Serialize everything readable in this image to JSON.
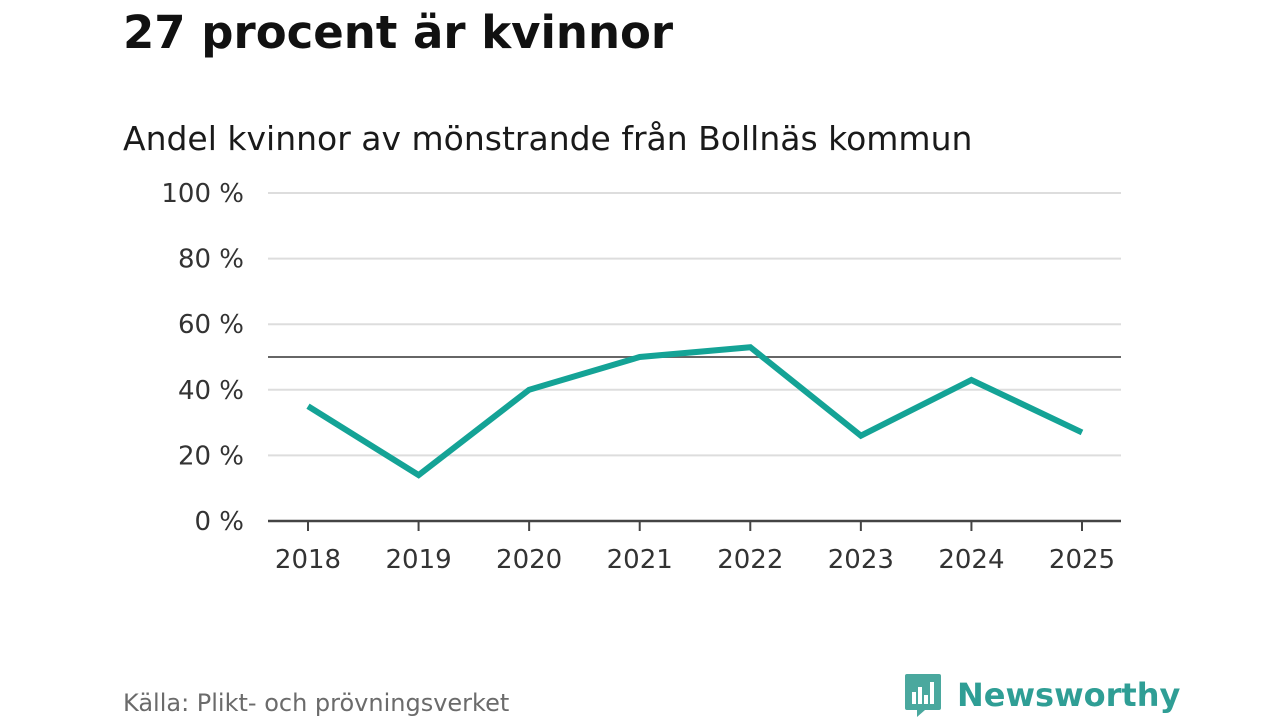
{
  "headline": "27 procent är kvinnor",
  "colors": {
    "series": "#14a396",
    "reference": "#666666",
    "grid": "#dddddd",
    "baseline": "#444444",
    "brand": "#2f9e95"
  },
  "chart_data": {
    "type": "line",
    "title": "Andel kvinnor av mönstrande från Bollnäs kommun",
    "xlabel": "",
    "ylabel": "",
    "categories": [
      "2018",
      "2019",
      "2020",
      "2021",
      "2022",
      "2023",
      "2024",
      "2025"
    ],
    "series": [
      {
        "name": "Andel kvinnor",
        "values": [
          35,
          14,
          40,
          50,
          53,
          26,
          43,
          27
        ]
      }
    ],
    "ylim": [
      0,
      100
    ],
    "yticks": [
      0,
      20,
      40,
      60,
      80,
      100
    ],
    "ytick_labels": [
      "0 %",
      "20 %",
      "40 %",
      "60 %",
      "80 %",
      "100 %"
    ],
    "reference_line": 50,
    "grid": true
  },
  "footer": {
    "source": "Källa: Plikt- och prövningsverket",
    "brand_name": "Newsworthy",
    "brand_icon": "newsworthy-logo-icon"
  }
}
